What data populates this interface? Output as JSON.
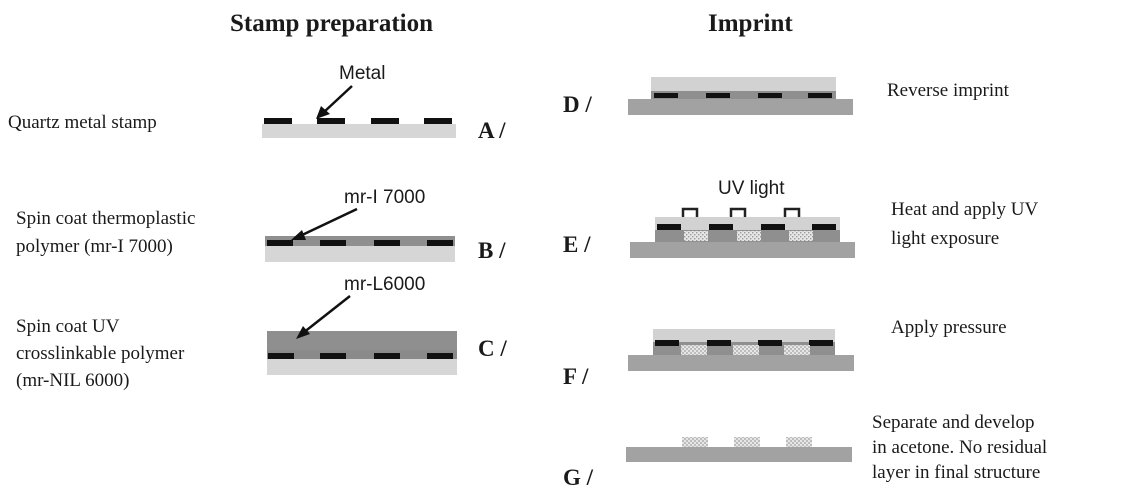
{
  "sections": {
    "stamp_title": "Stamp preparation",
    "imprint_title": "Imprint"
  },
  "steps": {
    "A": {
      "letter": "A /",
      "description": "Quartz metal stamp",
      "callout": "Metal"
    },
    "B": {
      "letter": "B /",
      "description_line1": "Spin coat thermoplastic",
      "description_line2": "polymer (mr-I 7000)",
      "callout": "mr-I 7000"
    },
    "C": {
      "letter": "C /",
      "description_line1": "Spin coat UV",
      "description_line2": "crosslinkable polymer",
      "description_line3": "(mr-NIL 6000)",
      "callout": "mr-L6000"
    },
    "D": {
      "letter": "D /",
      "description": "Reverse imprint"
    },
    "E": {
      "letter": "E /",
      "description_line1": "Heat and apply UV",
      "description_line2": "light exposure",
      "callout": "UV light"
    },
    "F": {
      "letter": "F /",
      "description": "Apply pressure"
    },
    "G": {
      "letter": "G /",
      "description_line1": "Separate and develop",
      "description_line2": "in acetone. No residual",
      "description_line3": "layer in final structure"
    }
  },
  "colors": {
    "quartz": "#d6d6d6",
    "metal": "#111111",
    "polymer": "#8f8f8f",
    "uv_layer": "#a9a9a9",
    "substrate": "#a2a2a2",
    "exposed": "#e4e4e4"
  }
}
